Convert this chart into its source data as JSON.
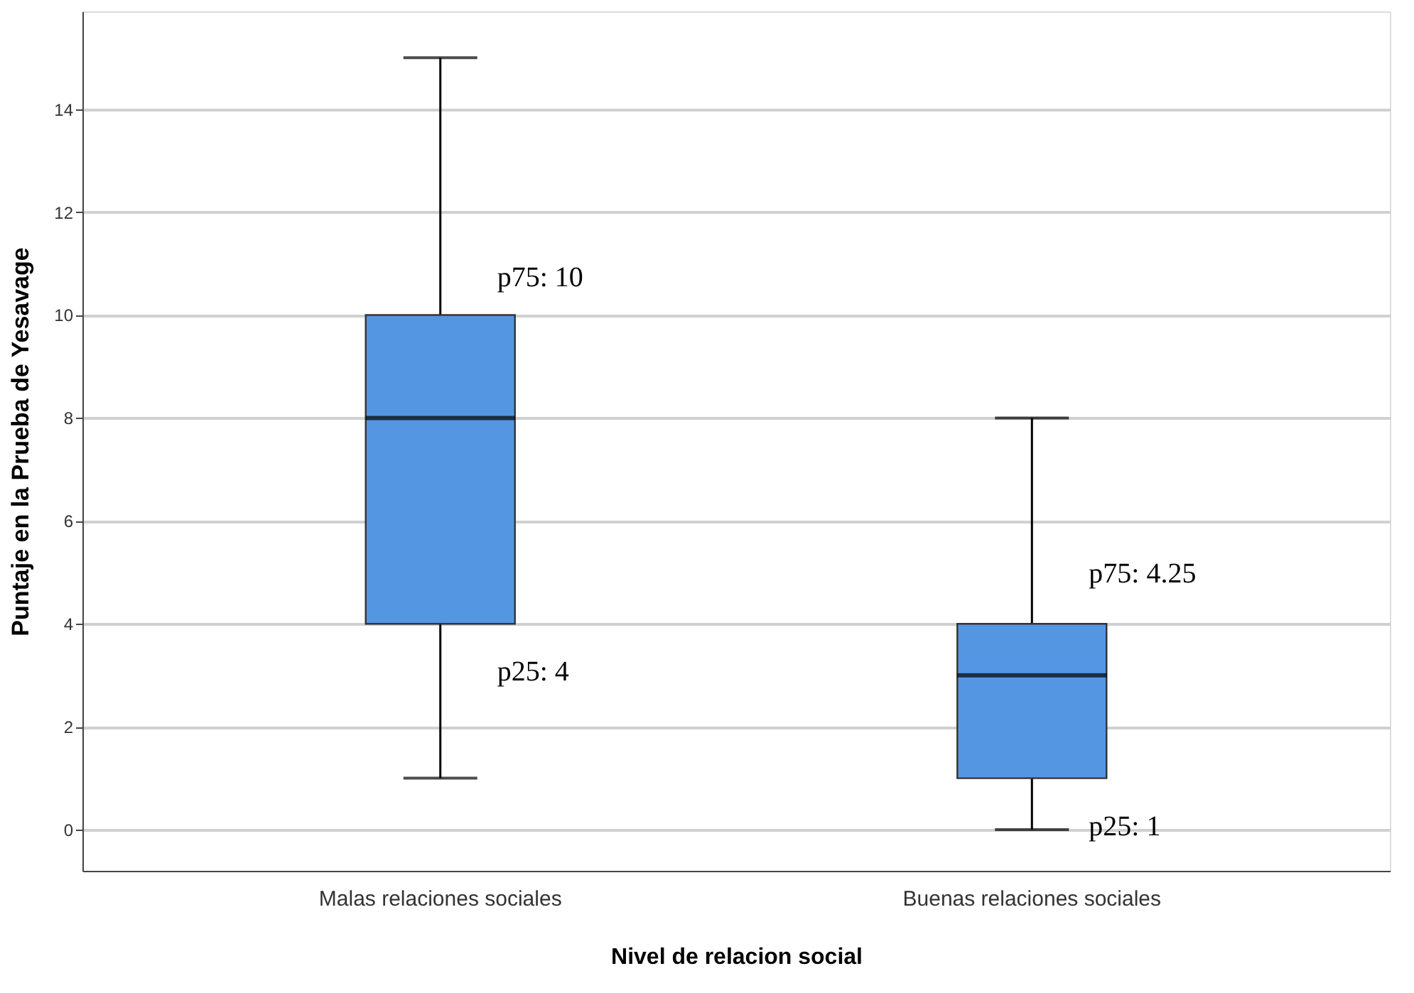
{
  "chart_data": {
    "type": "box",
    "xlabel": "Nivel de relacion social",
    "ylabel": "Puntaje en la Prueba de Yesavage",
    "categories": [
      "Malas relaciones sociales",
      "Buenas relaciones sociales"
    ],
    "boxes": [
      {
        "low": 1,
        "q1": 4,
        "median": 8,
        "q3": 10,
        "high": 15
      },
      {
        "low": 0,
        "q1": 1,
        "median": 3,
        "q3": 4,
        "high": 8
      }
    ],
    "color": "#5596e3",
    "ylim": [
      -0.8,
      15.9
    ],
    "yticks": [
      0,
      2,
      4,
      6,
      8,
      10,
      12,
      14
    ],
    "grid": "y",
    "annotations": [
      {
        "text": "p75: 10",
        "x": "Malas relaciones sociales",
        "y": 10
      },
      {
        "text": "p25: 4",
        "x": "Malas relaciones sociales",
        "y": 4
      },
      {
        "text": "p75: 4.25",
        "x": "Buenas relaciones sociales",
        "y": 4.25
      },
      {
        "text": "p25: 1",
        "x": "Buenas relaciones sociales",
        "y": 1
      }
    ]
  }
}
